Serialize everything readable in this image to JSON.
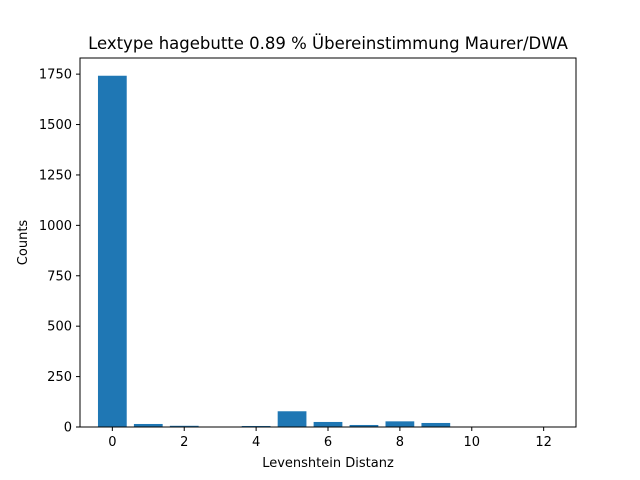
{
  "chart_data": {
    "type": "bar",
    "title": "Lextype hagebutte  0.89 % Übereinstimmung Maurer/DWA",
    "xlabel": "Levenshtein Distanz",
    "ylabel": "Counts",
    "x": [
      0,
      1,
      2,
      3,
      4,
      5,
      6,
      7,
      8,
      9,
      10,
      11,
      12
    ],
    "values": [
      1742,
      15,
      6,
      1,
      5,
      78,
      25,
      10,
      28,
      20,
      2,
      1,
      1
    ],
    "xlim": [
      -0.9,
      12.9
    ],
    "ylim": [
      0,
      1830
    ],
    "xticks": [
      0,
      2,
      4,
      6,
      8,
      10,
      12
    ],
    "xtick_labels": [
      "0",
      "2",
      "4",
      "6",
      "8",
      "10",
      "12"
    ],
    "yticks": [
      0,
      250,
      500,
      750,
      1000,
      1250,
      1500,
      1750
    ],
    "ytick_labels": [
      "0",
      "250",
      "500",
      "750",
      "1000",
      "1250",
      "1500",
      "1750"
    ],
    "grid": false,
    "bar_color": "#1f77b4"
  }
}
